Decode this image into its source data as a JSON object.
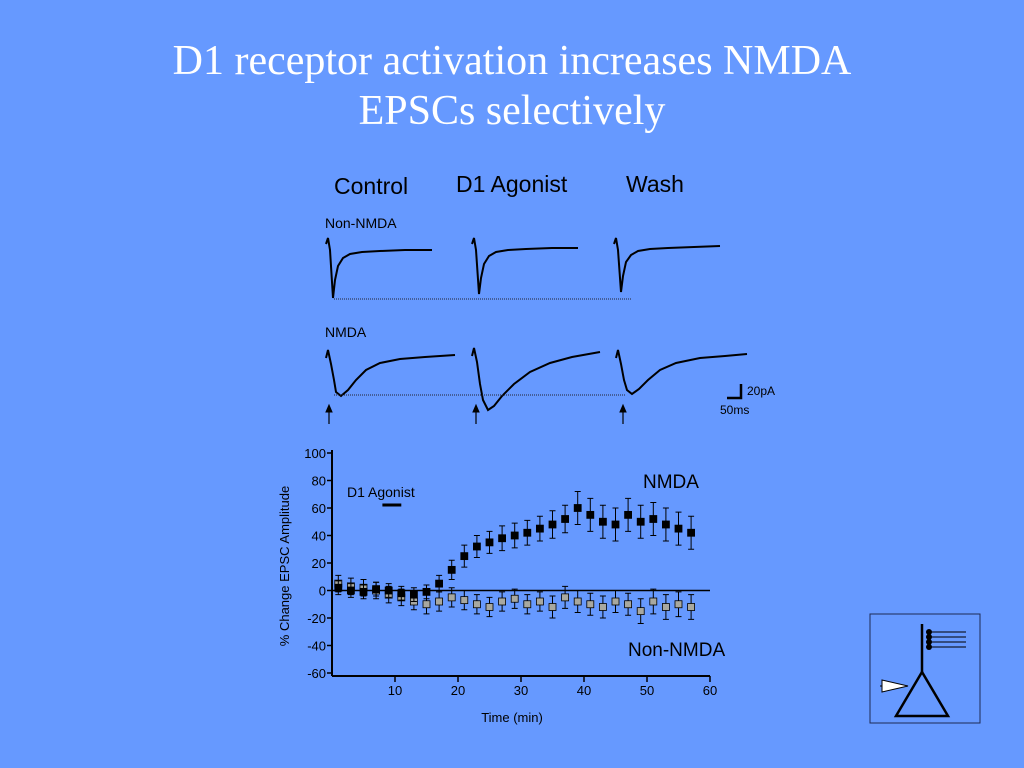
{
  "title": {
    "line1": "D1 receptor activation increases NMDA",
    "line2": "EPSCs selectively"
  },
  "traces_panel": {
    "condition_labels": [
      "Control",
      "D1 Agonist",
      "Wash"
    ],
    "row_labels": [
      "Non-NMDA",
      "NMDA"
    ],
    "scale_bar": {
      "current": "20pA",
      "time": "50ms"
    }
  },
  "chart_data": {
    "type": "scatter",
    "title": "",
    "xlabel": "Time (min)",
    "ylabel": "% Change EPSC Amplitude",
    "xlim": [
      0,
      60
    ],
    "ylim": [
      -60,
      100
    ],
    "xticks": [
      10,
      20,
      30,
      40,
      50,
      60
    ],
    "yticks": [
      100,
      80,
      60,
      40,
      20,
      0,
      -20,
      -40,
      -60
    ],
    "grid": false,
    "baseline": 0,
    "annotation": {
      "text": "D1 Agonist",
      "start_min": 8,
      "end_min": 11
    },
    "series": [
      {
        "name": "NMDA",
        "color": "#000000",
        "x": [
          1,
          3,
          5,
          7,
          9,
          11,
          13,
          15,
          17,
          19,
          21,
          23,
          25,
          27,
          29,
          31,
          33,
          35,
          37,
          39,
          41,
          43,
          45,
          47,
          49,
          51,
          53,
          55,
          57
        ],
        "y": [
          2,
          0,
          -1,
          1,
          0,
          -2,
          -3,
          -1,
          5,
          15,
          25,
          32,
          35,
          38,
          40,
          42,
          45,
          48,
          52,
          60,
          55,
          50,
          48,
          55,
          50,
          52,
          48,
          45,
          42
        ],
        "error": [
          5,
          5,
          5,
          5,
          5,
          5,
          5,
          5,
          6,
          7,
          8,
          8,
          8,
          9,
          9,
          9,
          9,
          10,
          10,
          12,
          12,
          12,
          12,
          12,
          12,
          12,
          12,
          12,
          12
        ]
      },
      {
        "name": "Non-NMDA",
        "color": "#a8a8a0",
        "x": [
          1,
          3,
          5,
          7,
          9,
          11,
          13,
          15,
          17,
          19,
          21,
          23,
          25,
          27,
          29,
          31,
          33,
          35,
          37,
          39,
          41,
          43,
          45,
          47,
          49,
          51,
          53,
          55,
          57
        ],
        "y": [
          5,
          3,
          2,
          0,
          -3,
          -5,
          -8,
          -10,
          -8,
          -5,
          -7,
          -10,
          -12,
          -8,
          -6,
          -10,
          -8,
          -12,
          -5,
          -8,
          -10,
          -12,
          -8,
          -10,
          -15,
          -8,
          -12,
          -10,
          -12
        ],
        "error": [
          6,
          6,
          6,
          6,
          6,
          6,
          6,
          7,
          7,
          7,
          7,
          7,
          7,
          7,
          7,
          7,
          7,
          8,
          8,
          8,
          8,
          8,
          8,
          8,
          9,
          9,
          9,
          9,
          9
        ]
      }
    ]
  }
}
